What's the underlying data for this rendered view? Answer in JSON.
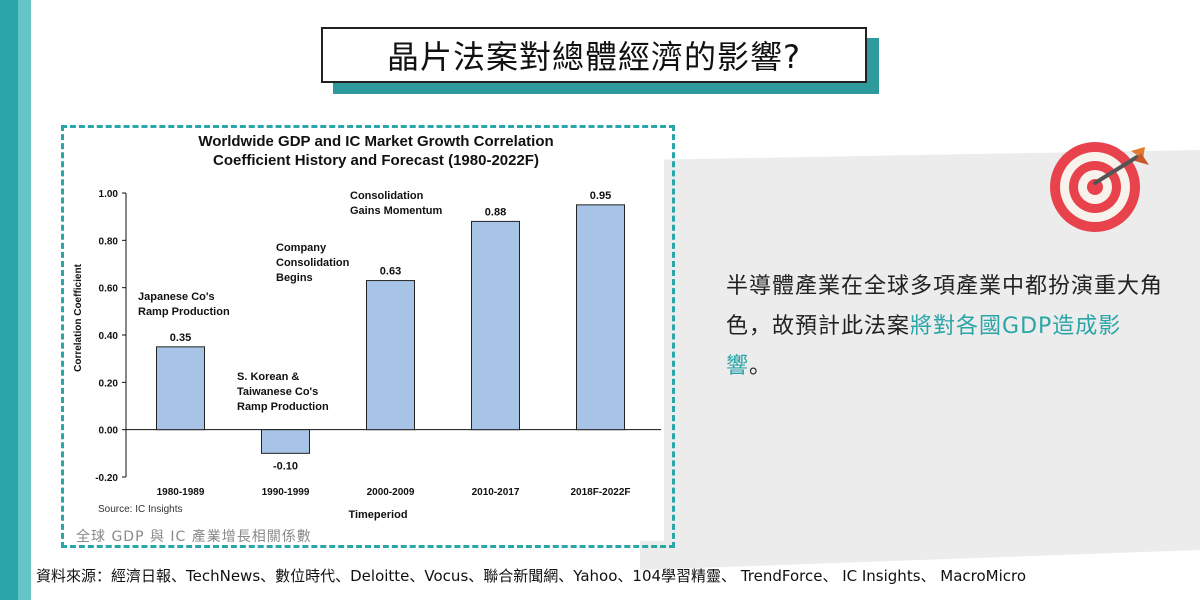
{
  "page_title": "晶片法案對總體經濟的影響?",
  "body": {
    "text_plain": "半導體產業在全球多項產業中都扮演重大角色，故預計此法案",
    "text_highlight": "將對各國GDP造成影響",
    "text_end": "。"
  },
  "chart_caption": "全球 GDP 與 IC 產業增長相關係數",
  "source_line": "資料來源：經濟日報、TechNews、數位時代、Deloitte、Vocus、聯合新聞網、Yahoo、104學習精靈、 TrendForce、 IC Insights、 MacroMicro",
  "icons": {
    "target": "target-with-arrow-icon"
  },
  "colors": {
    "accent": "#2aa5a8",
    "bar": "#a7c4e6",
    "gray_band": "#ececec"
  },
  "chart_data": {
    "type": "bar",
    "title": "Worldwide GDP and IC Market Growth Correlation",
    "subtitle": "Coefficient History and Forecast (1980-2022F)",
    "xlabel": "Timeperiod",
    "ylabel": "Correlation Coefficient",
    "ylim": [
      -0.2,
      1.0
    ],
    "yticks": [
      "1.00",
      "0.80",
      "0.60",
      "0.40",
      "0.20",
      "0.00",
      "-0.20"
    ],
    "categories": [
      "1980-1989",
      "1990-1999",
      "2000-2009",
      "2010-2017",
      "2018F-2022F"
    ],
    "values": [
      0.35,
      -0.1,
      0.63,
      0.88,
      0.95
    ],
    "value_labels": [
      "0.35",
      "-0.10",
      "0.63",
      "0.88",
      "0.95"
    ],
    "annotations": [
      {
        "lines": [
          "Japanese Co's",
          "Ramp Production"
        ]
      },
      {
        "lines": [
          "S. Korean &",
          "Taiwanese Co's",
          "Ramp Production"
        ]
      },
      {
        "lines": [
          "Company",
          "Consolidation",
          "Begins"
        ]
      },
      {
        "lines": [
          "Consolidation",
          "Gains Momentum"
        ]
      }
    ],
    "source": "Source: IC Insights",
    "grid": false
  }
}
